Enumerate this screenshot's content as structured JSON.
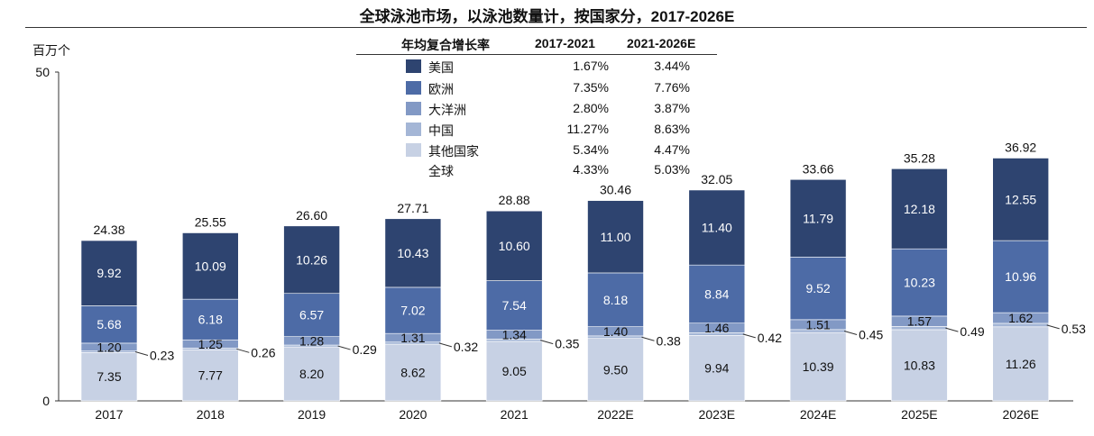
{
  "chart_data": {
    "type": "bar",
    "stacked": true,
    "title": "全球泳池市场，以泳池数量计，按国家分，2017-2026E",
    "unit": "百万个",
    "ylim": [
      0,
      50
    ],
    "yticks": [
      "0",
      "50"
    ],
    "categories": [
      "2017",
      "2018",
      "2019",
      "2020",
      "2021",
      "2022E",
      "2023E",
      "2024E",
      "2025E",
      "2026E"
    ],
    "series": [
      {
        "name": "其他国家",
        "color": "#c7d1e4",
        "values": [
          7.35,
          7.77,
          8.2,
          8.62,
          9.05,
          9.5,
          9.94,
          10.39,
          10.83,
          11.26
        ],
        "labels": [
          "7.35",
          "7.77",
          "8.20",
          "8.62",
          "9.05",
          "9.50",
          "9.94",
          "10.39",
          "10.83",
          "11.26"
        ],
        "cagr_2017_2021": "5.34%",
        "cagr_2021_2026": "4.47%"
      },
      {
        "name": "中国",
        "color": "#a4b6d6",
        "values": [
          0.23,
          0.26,
          0.29,
          0.32,
          0.35,
          0.38,
          0.42,
          0.45,
          0.49,
          0.53
        ],
        "labels": [
          "0.23",
          "0.26",
          "0.29",
          "0.32",
          "0.35",
          "0.38",
          "0.42",
          "0.45",
          "0.49",
          "0.53"
        ],
        "cagr_2017_2021": "11.27%",
        "cagr_2021_2026": "8.63%"
      },
      {
        "name": "大洋洲",
        "color": "#8299c5",
        "values": [
          1.2,
          1.25,
          1.28,
          1.31,
          1.34,
          1.4,
          1.46,
          1.51,
          1.57,
          1.62
        ],
        "labels": [
          "1.20",
          "1.25",
          "1.28",
          "1.31",
          "1.34",
          "1.40",
          "1.46",
          "1.51",
          "1.57",
          "1.62"
        ],
        "cagr_2017_2021": "2.80%",
        "cagr_2021_2026": "3.87%"
      },
      {
        "name": "欧洲",
        "color": "#4d6ba6",
        "values": [
          5.68,
          6.18,
          6.57,
          7.02,
          7.54,
          8.18,
          8.84,
          9.52,
          10.23,
          10.96
        ],
        "labels": [
          "5.68",
          "6.18",
          "6.57",
          "7.02",
          "7.54",
          "8.18",
          "8.84",
          "9.52",
          "10.23",
          "10.96"
        ],
        "cagr_2017_2021": "7.35%",
        "cagr_2021_2026": "7.76%"
      },
      {
        "name": "美国",
        "color": "#2e4470",
        "values": [
          9.92,
          10.09,
          10.26,
          10.43,
          10.6,
          11.0,
          11.4,
          11.79,
          12.18,
          12.55
        ],
        "labels": [
          "9.92",
          "10.09",
          "10.26",
          "10.43",
          "10.60",
          "11.00",
          "11.40",
          "11.79",
          "12.18",
          "12.55"
        ],
        "cagr_2017_2021": "1.67%",
        "cagr_2021_2026": "3.44%"
      }
    ],
    "totals": [
      "24.38",
      "25.55",
      "26.60",
      "27.71",
      "28.88",
      "30.46",
      "32.05",
      "33.66",
      "35.28",
      "36.92"
    ],
    "legend": {
      "header": "年均复合增长率",
      "col1": "2017-2021",
      "col2": "2021-2026E",
      "rows": [
        {
          "name": "美国",
          "color": "#2e4470",
          "c1": "1.67%",
          "c2": "3.44%"
        },
        {
          "name": "欧洲",
          "color": "#4d6ba6",
          "c1": "7.35%",
          "c2": "7.76%"
        },
        {
          "name": "大洋洲",
          "color": "#8299c5",
          "c1": "2.80%",
          "c2": "3.87%"
        },
        {
          "name": "中国",
          "color": "#a4b6d6",
          "c1": "11.27%",
          "c2": "8.63%"
        },
        {
          "name": "其他国家",
          "color": "#c7d1e4",
          "c1": "5.34%",
          "c2": "4.47%"
        }
      ],
      "total_row": {
        "name": "全球",
        "c1": "4.33%",
        "c2": "5.03%"
      }
    },
    "grid": false,
    "legend_placement": "top-center"
  }
}
